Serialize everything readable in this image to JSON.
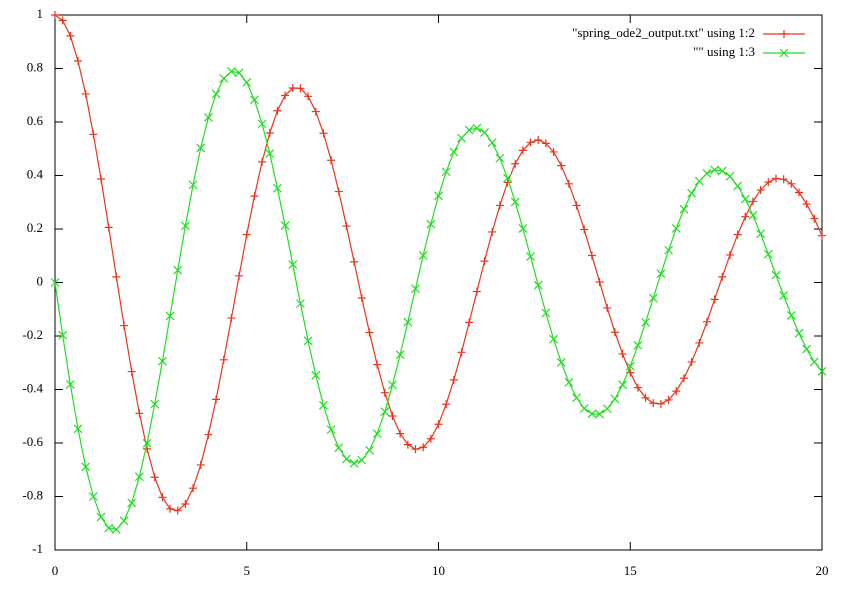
{
  "chart_data": {
    "type": "line",
    "x": [
      0,
      0.2,
      0.4,
      0.6,
      0.8,
      1,
      1.2,
      1.4,
      1.6,
      1.8,
      2,
      2.2,
      2.4,
      2.6,
      2.8,
      3,
      3.2,
      3.4,
      3.6,
      3.8,
      4,
      4.2,
      4.4,
      4.6,
      4.8,
      5,
      5.2,
      5.4,
      5.6,
      5.8,
      6,
      6.2,
      6.4,
      6.6,
      6.8,
      7,
      7.2,
      7.4,
      7.6,
      7.8,
      8,
      8.2,
      8.4,
      8.6,
      8.8,
      9,
      9.2,
      9.4,
      9.6,
      9.8,
      10,
      10.2,
      10.4,
      10.6,
      10.8,
      11,
      11.2,
      11.4,
      11.6,
      11.8,
      12,
      12.2,
      12.4,
      12.6,
      12.8,
      13,
      13.2,
      13.4,
      13.6,
      13.8,
      14,
      14.2,
      14.4,
      14.6,
      14.8,
      15,
      15.2,
      15.4,
      15.6,
      15.8,
      16,
      16.2,
      16.4,
      16.6,
      16.8,
      17,
      17.2,
      17.4,
      17.6,
      17.8,
      18,
      18.2,
      18.4,
      18.6,
      18.8,
      19,
      19.2,
      19.4,
      19.6,
      19.8,
      20
    ],
    "series": [
      {
        "name": "\"spring_ode2_output.txt\" using 1:2",
        "color": "#e8341c",
        "marker": "plus",
        "values": [
          1,
          0.98,
          0.922,
          0.828,
          0.705,
          0.554,
          0.387,
          0.206,
          0.021,
          -0.161,
          -0.333,
          -0.489,
          -0.622,
          -0.728,
          -0.803,
          -0.846,
          -0.853,
          -0.828,
          -0.769,
          -0.682,
          -0.569,
          -0.437,
          -0.289,
          -0.133,
          0.025,
          0.179,
          0.323,
          0.451,
          0.559,
          0.642,
          0.699,
          0.727,
          0.726,
          0.696,
          0.639,
          0.558,
          0.457,
          0.34,
          0.211,
          0.077,
          -0.058,
          -0.187,
          -0.307,
          -0.412,
          -0.499,
          -0.565,
          -0.606,
          -0.623,
          -0.616,
          -0.584,
          -0.53,
          -0.455,
          -0.364,
          -0.261,
          -0.149,
          -0.034,
          0.08,
          0.189,
          0.288,
          0.374,
          0.444,
          0.494,
          0.524,
          0.533,
          0.52,
          0.488,
          0.437,
          0.369,
          0.288,
          0.198,
          0.101,
          0.002,
          -0.095,
          -0.186,
          -0.267,
          -0.337,
          -0.393,
          -0.431,
          -0.451,
          -0.454,
          -0.439,
          -0.406,
          -0.358,
          -0.297,
          -0.226,
          -0.147,
          -0.063,
          0.021,
          0.103,
          0.179,
          0.246,
          0.303,
          0.346,
          0.375,
          0.389,
          0.386,
          0.369,
          0.337,
          0.293,
          0.239,
          0.175
        ]
      },
      {
        "name": "\"\" using 1:3",
        "color": "#22dd22",
        "marker": "cross",
        "values": [
          0,
          -0.197,
          -0.381,
          -0.547,
          -0.689,
          -0.8,
          -0.877,
          -0.918,
          -0.923,
          -0.891,
          -0.824,
          -0.726,
          -0.601,
          -0.455,
          -0.294,
          -0.125,
          0.046,
          0.212,
          0.365,
          0.503,
          0.617,
          0.705,
          0.763,
          0.789,
          0.784,
          0.748,
          0.683,
          0.593,
          0.482,
          0.352,
          0.213,
          0.067,
          -0.079,
          -0.218,
          -0.347,
          -0.459,
          -0.55,
          -0.618,
          -0.66,
          -0.676,
          -0.664,
          -0.627,
          -0.565,
          -0.483,
          -0.383,
          -0.27,
          -0.148,
          -0.023,
          0.101,
          0.218,
          0.324,
          0.414,
          0.488,
          0.54,
          0.57,
          0.577,
          0.561,
          0.523,
          0.465,
          0.39,
          0.301,
          0.202,
          0.097,
          -0.01,
          -0.114,
          -0.212,
          -0.299,
          -0.373,
          -0.431,
          -0.471,
          -0.491,
          -0.492,
          -0.472,
          -0.435,
          -0.382,
          -0.313,
          -0.235,
          -0.149,
          -0.058,
          0.033,
          0.121,
          0.202,
          0.274,
          0.334,
          0.379,
          0.408,
          0.421,
          0.417,
          0.397,
          0.361,
          0.312,
          0.251,
          0.182,
          0.106,
          0.028,
          -0.049,
          -0.123,
          -0.19,
          -0.249,
          -0.297,
          -0.332
        ]
      }
    ],
    "xlim": [
      0,
      20
    ],
    "xticks": [
      0,
      5,
      10,
      15,
      20
    ],
    "ylim": [
      -1,
      1
    ],
    "yticks": [
      -1,
      -0.8,
      -0.6,
      -0.4,
      -0.2,
      0,
      0.2,
      0.4,
      0.6,
      0.8,
      1
    ],
    "legend": "top right"
  }
}
